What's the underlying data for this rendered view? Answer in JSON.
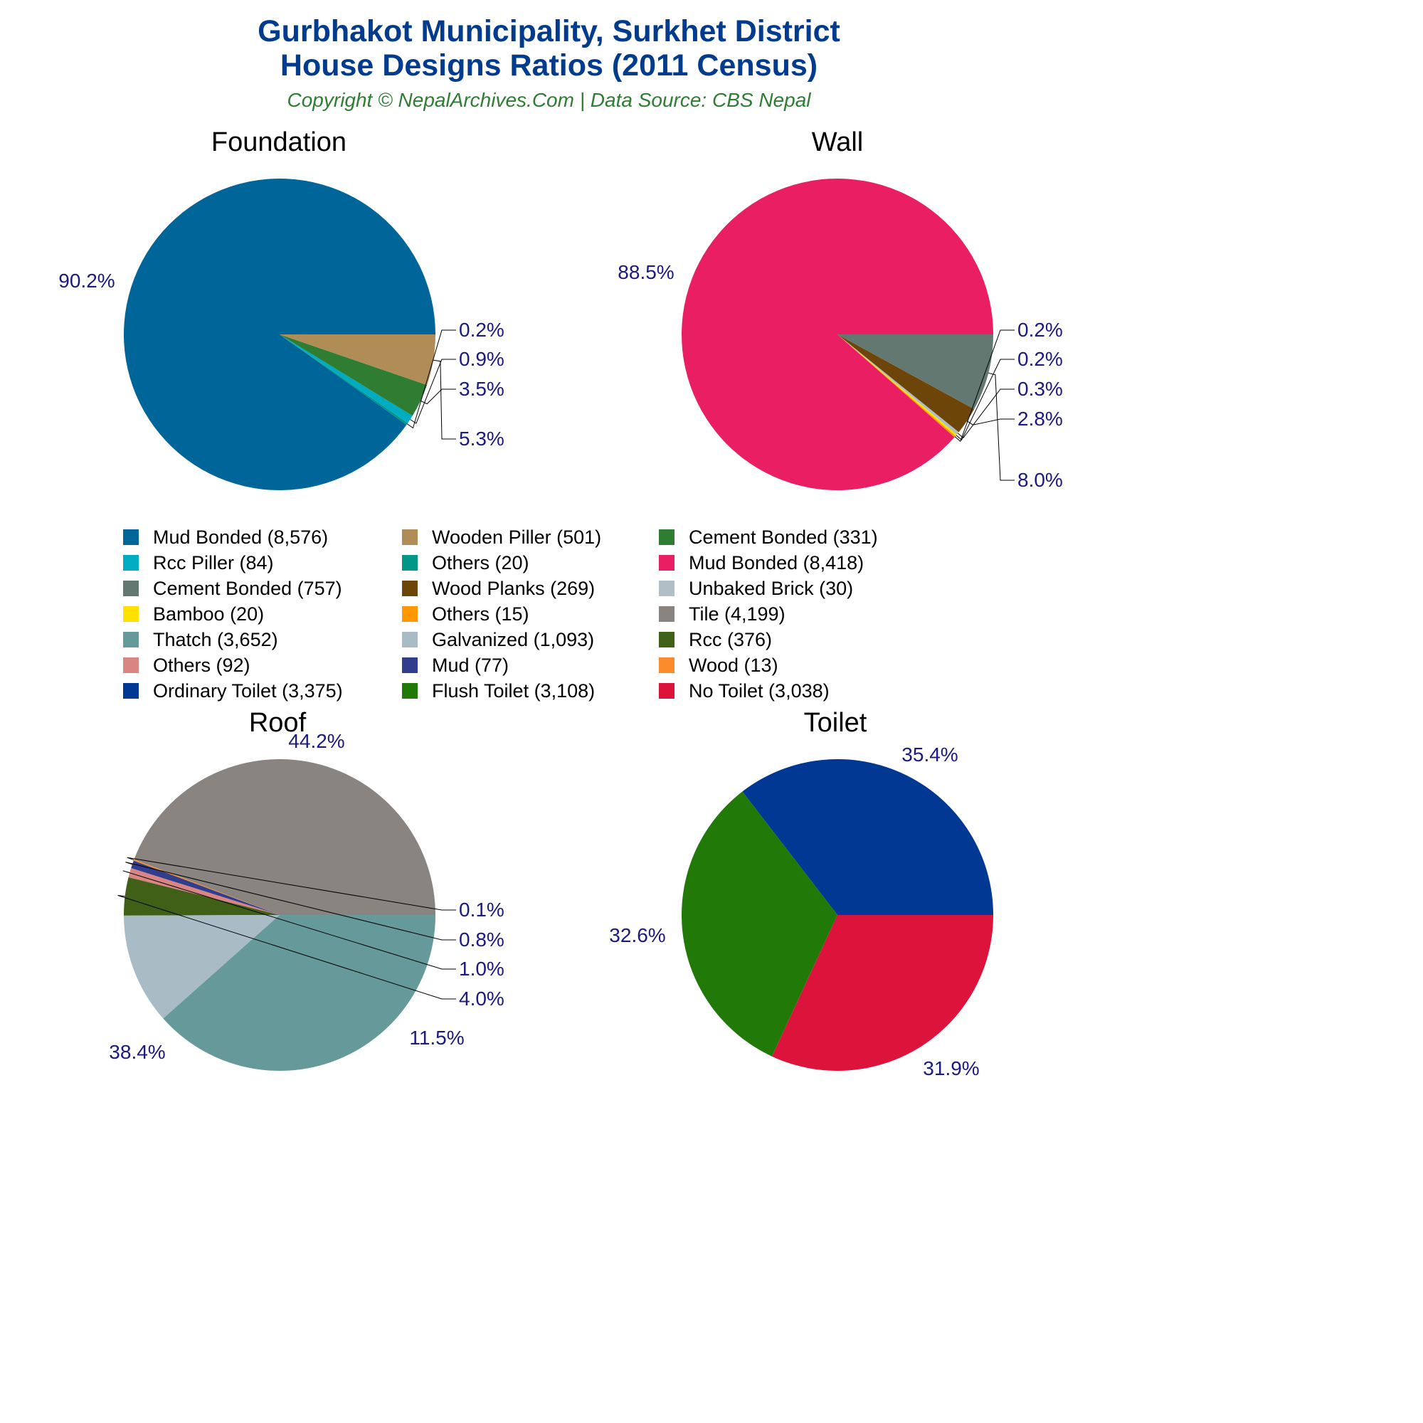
{
  "header": {
    "title_line1": "Gurbhakot Municipality, Surkhet District",
    "title_line2": "House Designs Ratios (2011 Census)",
    "subtitle": "Copyright © NepalArchives.Com | Data Source: CBS Nepal"
  },
  "colors": {
    "title": "#003b8e",
    "subtitle": "#2e7d32",
    "pct_label": "#1a1a80"
  },
  "chart_data": [
    {
      "type": "pie",
      "title": "Foundation",
      "slices": [
        {
          "label": "Mud Bonded",
          "value": 8576,
          "pct": "90.2%",
          "color": "#006699"
        },
        {
          "label": "Others",
          "value": 20,
          "pct": "0.2%",
          "color": "#009688"
        },
        {
          "label": "Rcc Piller",
          "value": 84,
          "pct": "0.9%",
          "color": "#00acc1"
        },
        {
          "label": "Cement Bonded",
          "value": 331,
          "pct": "3.5%",
          "color": "#2e7d32"
        },
        {
          "label": "Wooden Piller",
          "value": 501,
          "pct": "5.3%",
          "color": "#b08d57"
        }
      ]
    },
    {
      "type": "pie",
      "title": "Wall",
      "slices": [
        {
          "label": "Mud Bonded",
          "value": 8418,
          "pct": "88.5%",
          "color": "#e91e63"
        },
        {
          "label": "Others",
          "value": 15,
          "pct": "0.2%",
          "color": "#ff9800"
        },
        {
          "label": "Bamboo",
          "value": 20,
          "pct": "0.2%",
          "color": "#ffe000"
        },
        {
          "label": "Unbaked Brick",
          "value": 30,
          "pct": "0.3%",
          "color": "#b0bec5"
        },
        {
          "label": "Wood Planks",
          "value": 269,
          "pct": "2.8%",
          "color": "#6d4508"
        },
        {
          "label": "Cement Bonded",
          "value": 757,
          "pct": "8.0%",
          "color": "#637870"
        }
      ]
    },
    {
      "type": "pie",
      "title": "Roof",
      "slices": [
        {
          "label": "Tile",
          "value": 4199,
          "pct": "44.2%",
          "color": "#8a8480"
        },
        {
          "label": "Wood",
          "value": 13,
          "pct": "0.1%",
          "color": "#fb8c2c"
        },
        {
          "label": "Mud",
          "value": 77,
          "pct": "0.8%",
          "color": "#313e8e"
        },
        {
          "label": "Others",
          "value": 92,
          "pct": "1.0%",
          "color": "#d98584"
        },
        {
          "label": "Rcc",
          "value": 376,
          "pct": "4.0%",
          "color": "#3f6016"
        },
        {
          "label": "Galvanized",
          "value": 1093,
          "pct": "11.5%",
          "color": "#a9bcc5"
        },
        {
          "label": "Thatch",
          "value": 3652,
          "pct": "38.4%",
          "color": "#669999"
        }
      ]
    },
    {
      "type": "pie",
      "title": "Toilet",
      "slices": [
        {
          "label": "Ordinary Toilet",
          "value": 3375,
          "pct": "35.4%",
          "color": "#003893"
        },
        {
          "label": "Flush Toilet",
          "value": 3108,
          "pct": "32.6%",
          "color": "#217a08"
        },
        {
          "label": "No Toilet",
          "value": 3038,
          "pct": "31.9%",
          "color": "#dc143c"
        }
      ]
    }
  ],
  "legend": [
    {
      "label": "Mud Bonded (8,576)",
      "color": "#006699"
    },
    {
      "label": "Wooden Piller (501)",
      "color": "#b08d57"
    },
    {
      "label": "Cement Bonded (331)",
      "color": "#2e7d32"
    },
    {
      "label": "Rcc Piller (84)",
      "color": "#00acc1"
    },
    {
      "label": "Others (20)",
      "color": "#009688"
    },
    {
      "label": "Mud Bonded (8,418)",
      "color": "#e91e63"
    },
    {
      "label": "Cement Bonded (757)",
      "color": "#637870"
    },
    {
      "label": "Wood Planks (269)",
      "color": "#6d4508"
    },
    {
      "label": "Unbaked Brick (30)",
      "color": "#b0bec5"
    },
    {
      "label": "Bamboo (20)",
      "color": "#ffe000"
    },
    {
      "label": "Others (15)",
      "color": "#ff9800"
    },
    {
      "label": "Tile (4,199)",
      "color": "#8a8480"
    },
    {
      "label": "Thatch (3,652)",
      "color": "#669999"
    },
    {
      "label": "Galvanized (1,093)",
      "color": "#a9bcc5"
    },
    {
      "label": "Rcc (376)",
      "color": "#3f6016"
    },
    {
      "label": "Others (92)",
      "color": "#d98584"
    },
    {
      "label": "Mud (77)",
      "color": "#313e8e"
    },
    {
      "label": "Wood (13)",
      "color": "#fb8c2c"
    },
    {
      "label": "Ordinary Toilet (3,375)",
      "color": "#003893"
    },
    {
      "label": "Flush Toilet (3,108)",
      "color": "#217a08"
    },
    {
      "label": "No Toilet (3,038)",
      "color": "#dc143c"
    }
  ]
}
